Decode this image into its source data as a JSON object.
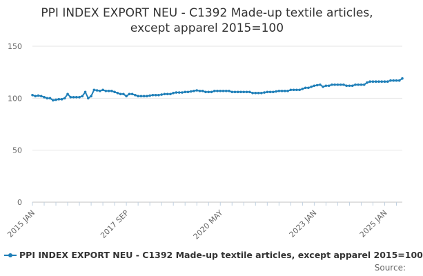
{
  "chart_data": {
    "type": "line",
    "title_line1": "PPI INDEX EXPORT NEU - C1392 Made-up textile articles,",
    "title_line2": "except apparel 2015=100",
    "xlabel": "",
    "ylabel": "",
    "ylim": [
      0,
      150
    ],
    "yticks": [
      0,
      50,
      100,
      150
    ],
    "x_start": "2015 JAN",
    "x_end": "2025 JAN",
    "x_tick_labels": [
      "2015 JAN",
      "2017 SEP",
      "2020 MAY",
      "2023 JAN",
      "2025 JAN"
    ],
    "x_tick_indices": [
      0,
      32,
      64,
      96,
      120
    ],
    "grid": "horizontal",
    "legend_position": "bottom",
    "series": [
      {
        "name": "PPI INDEX EXPORT NEU - C1392 Made-up textile articles, except apparel 2015=100",
        "color": "#1f7fb8",
        "values": [
          103,
          102,
          102.5,
          102,
          101,
          100,
          100,
          98,
          98.5,
          99,
          99,
          100,
          104,
          101,
          101,
          101,
          101,
          102,
          106,
          100,
          102,
          108,
          107.5,
          107,
          108,
          107,
          107,
          107,
          106,
          105,
          104,
          104,
          102,
          104,
          104,
          103,
          102,
          102,
          102,
          102,
          102.5,
          103,
          103,
          103,
          103.5,
          104,
          104,
          104,
          105,
          105.5,
          105.5,
          105.5,
          106,
          106,
          106.5,
          107,
          107.5,
          107,
          107,
          106,
          106,
          106,
          107,
          107,
          107,
          107,
          107,
          107,
          106,
          106,
          106,
          106,
          106,
          106,
          106,
          105,
          105,
          105,
          105,
          105.5,
          106,
          106,
          106,
          106.5,
          107,
          107,
          107,
          107,
          108,
          108,
          108,
          108,
          109,
          110,
          110,
          111,
          112,
          112.5,
          113,
          111,
          112,
          112,
          113,
          113,
          113,
          113,
          113,
          112,
          112,
          112,
          113,
          113,
          113,
          113,
          115,
          116,
          116,
          116,
          116,
          116,
          116,
          116,
          117,
          117,
          117,
          117,
          119
        ]
      }
    ],
    "legend_label": "PPI INDEX EXPORT NEU - C1392 Made-up textile articles, except apparel 2015=100",
    "source_label": "Source:"
  }
}
